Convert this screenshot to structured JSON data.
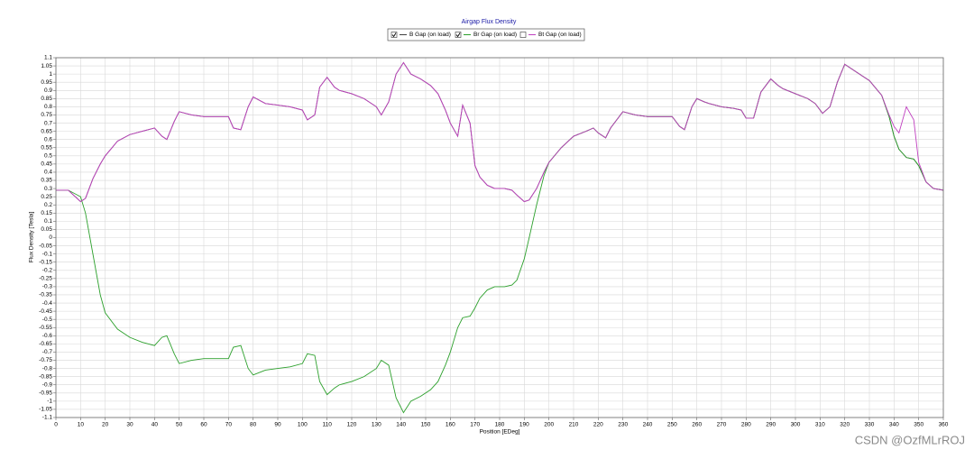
{
  "chart_data": {
    "type": "line",
    "title": "Airgap Flux Density",
    "xlabel": "Position [EDeg]",
    "ylabel": "Flux Density [Tesla]",
    "watermark": "CSDN @OzfMLrROJ",
    "grid": true,
    "legend": "top",
    "xlim": [
      0,
      360
    ],
    "ylim": [
      -1.1,
      1.1
    ],
    "xticks": [
      0,
      10,
      20,
      30,
      40,
      50,
      60,
      70,
      80,
      90,
      100,
      110,
      120,
      130,
      140,
      150,
      160,
      170,
      180,
      190,
      200,
      210,
      220,
      230,
      240,
      250,
      260,
      270,
      280,
      290,
      300,
      310,
      320,
      330,
      340,
      350,
      360
    ],
    "yticks": [
      -1.1,
      -1.05,
      -1,
      -0.95,
      -0.9,
      -0.85,
      -0.8,
      -0.75,
      -0.7,
      -0.65,
      -0.6,
      -0.55,
      -0.5,
      -0.45,
      -0.4,
      -0.35,
      -0.3,
      -0.25,
      -0.2,
      -0.15,
      -0.1,
      -0.05,
      0,
      0.05,
      0.1,
      0.15,
      0.2,
      0.25,
      0.3,
      0.35,
      0.4,
      0.45,
      0.5,
      0.55,
      0.6,
      0.65,
      0.7,
      0.75,
      0.8,
      0.85,
      0.9,
      0.95,
      1,
      1.05,
      1.1
    ],
    "x": [
      0,
      5,
      10,
      12,
      15,
      18,
      20,
      25,
      30,
      35,
      40,
      43,
      45,
      48,
      50,
      55,
      60,
      65,
      70,
      72,
      75,
      78,
      80,
      85,
      90,
      95,
      100,
      102,
      105,
      107,
      110,
      113,
      115,
      120,
      125,
      130,
      132,
      135,
      138,
      141,
      144,
      148,
      152,
      155,
      158,
      160,
      163,
      165,
      168,
      170,
      172,
      175,
      178,
      182,
      185,
      187,
      190,
      192,
      195,
      198,
      200,
      205,
      210,
      215,
      218,
      220,
      223,
      225,
      228,
      230,
      235,
      240,
      245,
      250,
      253,
      255,
      258,
      260,
      263,
      265,
      270,
      275,
      278,
      280,
      283,
      286,
      290,
      293,
      295,
      300,
      305,
      308,
      311,
      314,
      317,
      320,
      323,
      327,
      330,
      335,
      338,
      340,
      342,
      345,
      348,
      350,
      353,
      356,
      360
    ],
    "series": [
      {
        "name": "B Gap (on load)",
        "color": "#404040",
        "values": [
          0.29,
          0.29,
          0.22,
          0.24,
          0.36,
          0.45,
          0.5,
          0.59,
          0.63,
          0.65,
          0.67,
          0.62,
          0.6,
          0.71,
          0.77,
          0.75,
          0.74,
          0.74,
          0.74,
          0.67,
          0.66,
          0.8,
          0.86,
          0.82,
          0.81,
          0.8,
          0.78,
          0.72,
          0.75,
          0.92,
          0.98,
          0.92,
          0.9,
          0.88,
          0.85,
          0.8,
          0.75,
          0.83,
          1.0,
          1.07,
          1.0,
          0.97,
          0.93,
          0.88,
          0.78,
          0.7,
          0.62,
          0.81,
          0.7,
          0.44,
          0.37,
          0.32,
          0.3,
          0.3,
          0.29,
          0.26,
          0.22,
          0.23,
          0.3,
          0.4,
          0.46,
          0.55,
          0.62,
          0.65,
          0.67,
          0.64,
          0.61,
          0.67,
          0.73,
          0.77,
          0.75,
          0.74,
          0.74,
          0.74,
          0.68,
          0.66,
          0.8,
          0.85,
          0.83,
          0.82,
          0.8,
          0.79,
          0.78,
          0.73,
          0.73,
          0.89,
          0.97,
          0.93,
          0.91,
          0.88,
          0.85,
          0.82,
          0.76,
          0.8,
          0.95,
          1.06,
          1.03,
          0.99,
          0.96,
          0.87,
          0.74,
          0.62,
          0.54,
          0.49,
          0.48,
          0.44,
          0.34,
          0.3,
          0.29
        ]
      },
      {
        "name": "Br Gap (on load)",
        "color": "#2ca02c",
        "values": [
          0.29,
          0.29,
          0.25,
          0.15,
          -0.1,
          -0.35,
          -0.46,
          -0.56,
          -0.61,
          -0.64,
          -0.66,
          -0.61,
          -0.6,
          -0.71,
          -0.77,
          -0.75,
          -0.74,
          -0.74,
          -0.74,
          -0.67,
          -0.66,
          -0.8,
          -0.84,
          -0.81,
          -0.8,
          -0.79,
          -0.77,
          -0.71,
          -0.72,
          -0.88,
          -0.96,
          -0.92,
          -0.9,
          -0.88,
          -0.85,
          -0.8,
          -0.75,
          -0.78,
          -0.98,
          -1.07,
          -1.0,
          -0.97,
          -0.93,
          -0.88,
          -0.78,
          -0.7,
          -0.55,
          -0.49,
          -0.48,
          -0.43,
          -0.37,
          -0.32,
          -0.3,
          -0.3,
          -0.29,
          -0.26,
          -0.13,
          0.0,
          0.2,
          0.38,
          0.46,
          0.55,
          0.62,
          0.65,
          0.67,
          0.64,
          0.61,
          0.67,
          0.73,
          0.77,
          0.75,
          0.74,
          0.74,
          0.74,
          0.68,
          0.66,
          0.8,
          0.85,
          0.83,
          0.82,
          0.8,
          0.79,
          0.78,
          0.73,
          0.73,
          0.89,
          0.97,
          0.93,
          0.91,
          0.88,
          0.85,
          0.82,
          0.76,
          0.8,
          0.95,
          1.06,
          1.03,
          0.99,
          0.96,
          0.87,
          0.74,
          0.62,
          0.54,
          0.49,
          0.48,
          0.44,
          0.34,
          0.3,
          0.29
        ]
      },
      {
        "name": "Bt Gap (on load)",
        "color": "#c040c0",
        "values": [
          0.29,
          0.29,
          0.22,
          0.24,
          0.36,
          0.45,
          0.5,
          0.59,
          0.63,
          0.65,
          0.67,
          0.62,
          0.6,
          0.71,
          0.77,
          0.75,
          0.74,
          0.74,
          0.74,
          0.67,
          0.66,
          0.8,
          0.86,
          0.82,
          0.81,
          0.8,
          0.78,
          0.72,
          0.75,
          0.92,
          0.98,
          0.92,
          0.9,
          0.88,
          0.85,
          0.8,
          0.75,
          0.83,
          1.0,
          1.07,
          1.0,
          0.97,
          0.93,
          0.88,
          0.78,
          0.7,
          0.62,
          0.81,
          0.7,
          0.44,
          0.37,
          0.32,
          0.3,
          0.3,
          0.29,
          0.26,
          0.22,
          0.23,
          0.3,
          0.4,
          0.46,
          0.55,
          0.62,
          0.65,
          0.67,
          0.64,
          0.61,
          0.67,
          0.73,
          0.77,
          0.75,
          0.74,
          0.74,
          0.74,
          0.68,
          0.66,
          0.8,
          0.85,
          0.83,
          0.82,
          0.8,
          0.79,
          0.78,
          0.73,
          0.73,
          0.89,
          0.97,
          0.93,
          0.91,
          0.88,
          0.85,
          0.82,
          0.76,
          0.8,
          0.95,
          1.06,
          1.03,
          0.99,
          0.96,
          0.87,
          0.75,
          0.68,
          0.64,
          0.8,
          0.72,
          0.46,
          0.34,
          0.3,
          0.29
        ]
      }
    ]
  }
}
